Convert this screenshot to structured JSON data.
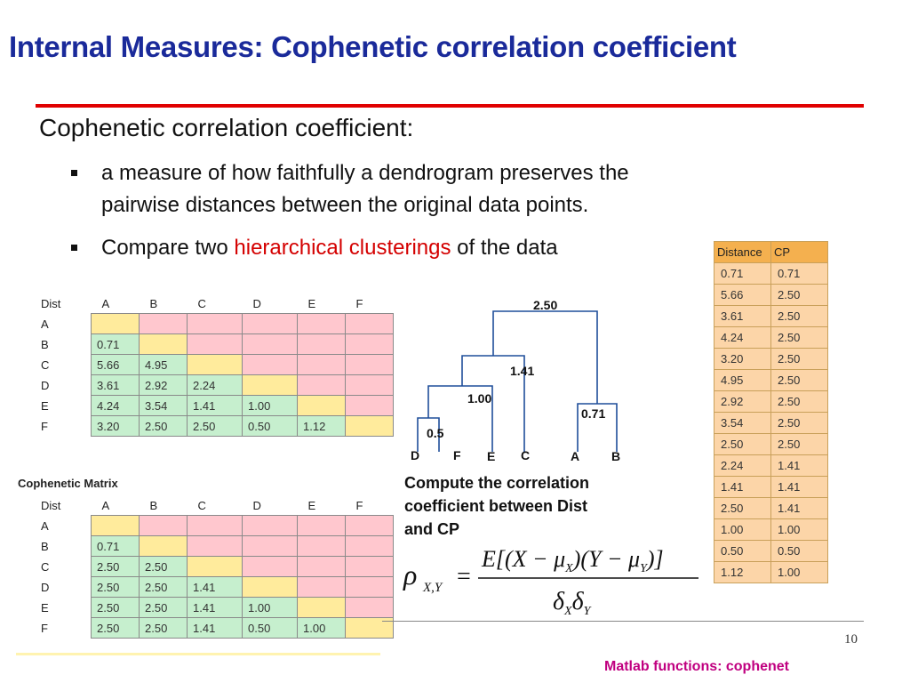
{
  "slide": {
    "title": "Internal Measures: Cophenetic correlation coefficient",
    "heading": "Cophenetic correlation coefficient:",
    "bullet1_line1": "a measure of how faithfully a dendrogram preserves the",
    "bullet1_line2": "pairwise distances between the original data points.",
    "bullet2_pre": "Compare two ",
    "bullet2_highlight": "hierarchical clusterings",
    "bullet2_post": " of the data",
    "page_number": "10",
    "footer": "Matlab functions: cophenet",
    "accent_red": "#e00000",
    "title_blue": "#1a2a9a"
  },
  "dist_matrix": {
    "corner": "Dist",
    "cols": [
      "A",
      "B",
      "C",
      "D",
      "E",
      "F"
    ],
    "rows": [
      "A",
      "B",
      "C",
      "D",
      "E",
      "F"
    ],
    "cells": [
      [
        "",
        "",
        "",
        "",
        "",
        ""
      ],
      [
        "0.71",
        "",
        "",
        "",
        "",
        ""
      ],
      [
        "5.66",
        "4.95",
        "",
        "",
        "",
        ""
      ],
      [
        "3.61",
        "2.92",
        "2.24",
        "",
        "",
        ""
      ],
      [
        "4.24",
        "3.54",
        "1.41",
        "1.00",
        "",
        ""
      ],
      [
        "3.20",
        "2.50",
        "2.50",
        "0.50",
        "1.12",
        ""
      ]
    ]
  },
  "coph_matrix": {
    "label": "Cophenetic Matrix",
    "corner": "Dist",
    "cols": [
      "A",
      "B",
      "C",
      "D",
      "E",
      "F"
    ],
    "rows": [
      "A",
      "B",
      "C",
      "D",
      "E",
      "F"
    ],
    "cells": [
      [
        "",
        "",
        "",
        "",
        "",
        ""
      ],
      [
        "0.71",
        "",
        "",
        "",
        "",
        ""
      ],
      [
        "2.50",
        "2.50",
        "",
        "",
        "",
        ""
      ],
      [
        "2.50",
        "2.50",
        "1.41",
        "",
        "",
        ""
      ],
      [
        "2.50",
        "2.50",
        "1.41",
        "1.00",
        "",
        ""
      ],
      [
        "2.50",
        "2.50",
        "1.41",
        "0.50",
        "1.00",
        ""
      ]
    ]
  },
  "cp_table": {
    "headers": [
      "Distance",
      "CP"
    ],
    "rows": [
      [
        "0.71",
        "0.71"
      ],
      [
        "5.66",
        "2.50"
      ],
      [
        "3.61",
        "2.50"
      ],
      [
        "4.24",
        "2.50"
      ],
      [
        "3.20",
        "2.50"
      ],
      [
        "4.95",
        "2.50"
      ],
      [
        "2.92",
        "2.50"
      ],
      [
        "3.54",
        "2.50"
      ],
      [
        "2.50",
        "2.50"
      ],
      [
        "2.24",
        "1.41"
      ],
      [
        "1.41",
        "1.41"
      ],
      [
        "2.50",
        "1.41"
      ],
      [
        "1.00",
        "1.00"
      ],
      [
        "0.50",
        "0.50"
      ],
      [
        "1.12",
        "1.00"
      ]
    ]
  },
  "dendrogram": {
    "leaves": [
      "D",
      "F",
      "E",
      "C",
      "A",
      "B"
    ],
    "merge_labels": [
      "2.50",
      "1.41",
      "1.00",
      "0.71",
      "0.5"
    ]
  },
  "compute": {
    "line1": "Compute the correlation",
    "line2": "coefficient between Dist",
    "line3": "and CP"
  },
  "formula": {
    "lhs": "ρ",
    "lhs_sub": "X,Y",
    "eq": "=",
    "numerator": "E[(X − μ",
    "num_sub1": "X",
    "num_mid": ")(Y − μ",
    "num_sub2": "Y",
    "num_end": ")]",
    "denominator": "δ",
    "den_sub1": "X",
    "den_mid": "δ",
    "den_sub2": "Y"
  }
}
